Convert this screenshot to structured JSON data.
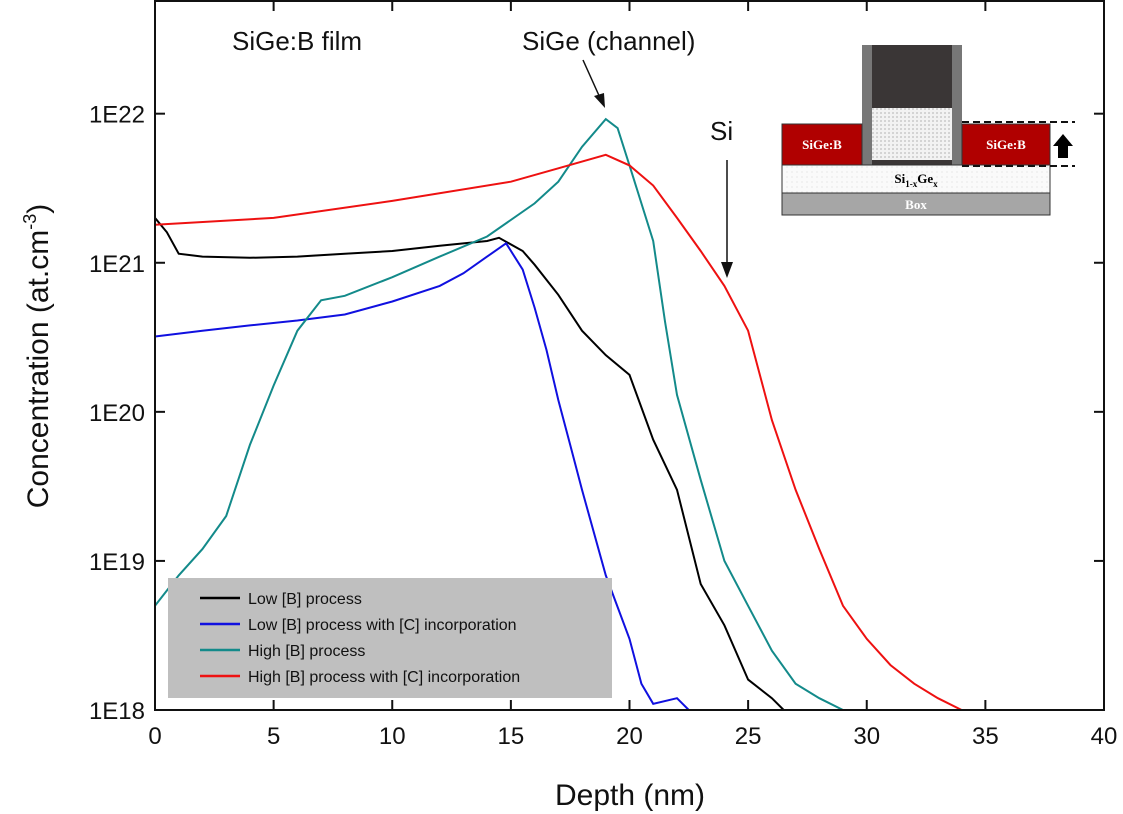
{
  "chart_data": {
    "type": "line",
    "x_label": "Depth (nm)",
    "y_label": {
      "text": "Concentration (at.cm",
      "sup": "-3",
      "end": ")"
    },
    "log_y": true,
    "xlim": [
      0,
      40
    ],
    "xticks": [
      0,
      5,
      10,
      15,
      20,
      25,
      30,
      35,
      40
    ],
    "ylim": [
      1e+18,
      5.7e+22
    ],
    "yticks": [
      {
        "value": 1e+18,
        "label": "1E18"
      },
      {
        "value": 1e+19,
        "label": "1E19"
      },
      {
        "value": 1e+20,
        "label": "1E20"
      },
      {
        "value": 1e+21,
        "label": "1E21"
      },
      {
        "value": 1e+22,
        "label": "1E22"
      }
    ],
    "legend_position": "lower left",
    "annotations": [
      "SiGe:B film",
      "SiGe (channel)",
      "Si"
    ],
    "inset": {
      "left": "SiGe:B",
      "right": "SiGe:B",
      "layer": [
        "Si",
        "1-x",
        "Ge",
        "x"
      ],
      "box": "Box"
    },
    "series": [
      {
        "name": "Low [B] process",
        "color": "#000000",
        "x": [
          0,
          0.5,
          1,
          2,
          4,
          6,
          8,
          10,
          12,
          14,
          14.5,
          15.5,
          16,
          17,
          18,
          19,
          20,
          21,
          22,
          23,
          24,
          25,
          26,
          26.5
        ],
        "values": [
          2e+21,
          1.6e+21,
          1.15e+21,
          1.1e+21,
          1.08e+21,
          1.1e+21,
          1.15e+21,
          1.2e+21,
          1.3e+21,
          1.4e+21,
          1.47e+21,
          1.2e+21,
          9.7e+20,
          6.1e+20,
          3.5e+20,
          2.4e+20,
          1.77e+20,
          6.5e+19,
          3e+19,
          7e+18,
          3.7e+18,
          1.6e+18,
          1.2e+18,
          1e+18
        ]
      },
      {
        "name": "Low [B] process with [C] incorporation",
        "color": "#1010e0",
        "x": [
          0,
          2,
          4,
          6,
          8,
          10,
          12,
          13,
          14,
          14.8,
          15.5,
          16,
          16.5,
          17,
          17.5,
          18,
          19,
          20,
          20.5,
          21,
          22,
          22.5
        ],
        "values": [
          3.2e+20,
          3.5e+20,
          3.8e+20,
          4.1e+20,
          4.5e+20,
          5.5e+20,
          7e+20,
          8.5e+20,
          1.1e+21,
          1.35e+21,
          9e+20,
          5e+20,
          2.6e+20,
          1.2e+20,
          6e+19,
          3e+19,
          8e+18,
          3e+18,
          1.5e+18,
          1.1e+18,
          1.2e+18,
          1e+18
        ]
      },
      {
        "name": "High [B] process",
        "color": "#138a8a",
        "x": [
          0,
          1,
          2,
          3,
          4,
          5,
          6,
          7,
          8,
          10,
          12,
          14,
          16,
          17,
          18,
          19,
          19.5,
          20,
          21,
          21.5,
          22,
          23,
          24,
          25,
          26,
          27,
          28,
          29
        ],
        "values": [
          5e+18,
          8e+18,
          1.2e+19,
          2e+19,
          6e+19,
          1.5e+20,
          3.5e+20,
          5.6e+20,
          6e+20,
          8e+20,
          1.1e+21,
          1.5e+21,
          2.5e+21,
          3.5e+21,
          6e+21,
          9.2e+21,
          8e+21,
          4.5e+21,
          1.4e+21,
          4e+20,
          1.3e+20,
          3.5e+19,
          1e+19,
          5e+18,
          2.5e+18,
          1.5e+18,
          1.2e+18,
          1e+18
        ]
      },
      {
        "name": "High [B] process with [C] incorporation",
        "color": "#ee1111",
        "x": [
          0,
          5,
          10,
          15,
          17,
          19,
          20,
          21,
          22,
          23,
          24,
          25,
          26,
          27,
          28,
          29,
          30,
          31,
          32,
          33,
          34
        ],
        "values": [
          1.8e+21,
          2e+21,
          2.6e+21,
          3.5e+21,
          4.3e+21,
          5.3e+21,
          4.5e+21,
          3.3e+21,
          2e+21,
          1.2e+21,
          7e+20,
          3.5e+20,
          8.8e+19,
          3e+19,
          1.2e+19,
          5e+18,
          3e+18,
          2e+18,
          1.5e+18,
          1.2e+18,
          1e+18
        ]
      }
    ]
  }
}
